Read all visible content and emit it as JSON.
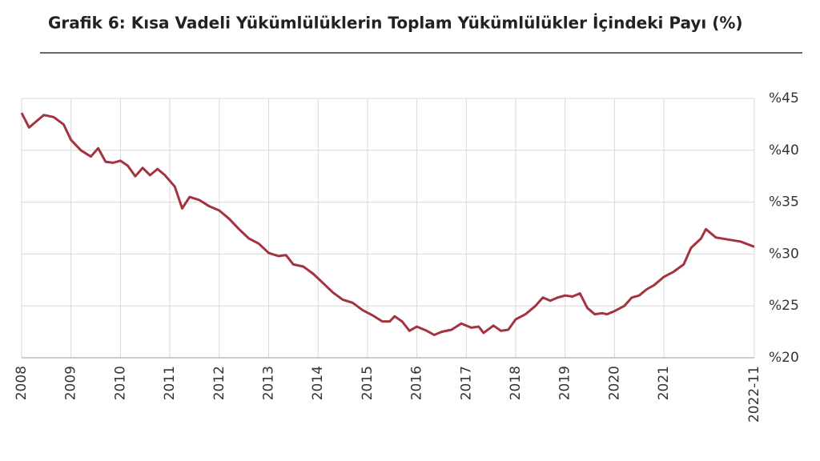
{
  "chart_data": {
    "type": "line",
    "title": "Grafik 6: Kısa Vadeli Yükümlülüklerin Toplam Yükümlülükler İçindeki Payı (%)",
    "x": [
      2008.0,
      2008.15,
      2008.3,
      2008.45,
      2008.65,
      2008.85,
      2009.0,
      2009.2,
      2009.4,
      2009.55,
      2009.7,
      2009.85,
      2010.0,
      2010.15,
      2010.3,
      2010.45,
      2010.6,
      2010.75,
      2010.9,
      2011.1,
      2011.25,
      2011.4,
      2011.6,
      2011.8,
      2012.0,
      2012.2,
      2012.4,
      2012.6,
      2012.8,
      2013.0,
      2013.2,
      2013.35,
      2013.5,
      2013.7,
      2013.9,
      2014.1,
      2014.3,
      2014.5,
      2014.7,
      2014.9,
      2015.1,
      2015.3,
      2015.45,
      2015.55,
      2015.7,
      2015.85,
      2016.0,
      2016.2,
      2016.35,
      2016.5,
      2016.7,
      2016.9,
      2017.1,
      2017.25,
      2017.35,
      2017.55,
      2017.7,
      2017.85,
      2018.0,
      2018.2,
      2018.4,
      2018.55,
      2018.7,
      2018.85,
      2019.0,
      2019.15,
      2019.3,
      2019.45,
      2019.6,
      2019.75,
      2019.85,
      2020.0,
      2020.2,
      2020.35,
      2020.5,
      2020.65,
      2020.8,
      2021.0,
      2021.2,
      2021.4,
      2021.55,
      2021.75,
      2021.85,
      2022.05,
      2022.3,
      2022.55,
      2022.83
    ],
    "series": [
      {
        "color": "#a3333f",
        "values": [
          43.6,
          42.2,
          42.8,
          43.4,
          43.2,
          42.5,
          41.0,
          40.0,
          39.4,
          40.2,
          38.9,
          38.8,
          39.0,
          38.5,
          37.5,
          38.3,
          37.6,
          38.2,
          37.6,
          36.5,
          34.4,
          35.5,
          35.2,
          34.6,
          34.2,
          33.4,
          32.4,
          31.5,
          31.0,
          30.1,
          29.8,
          29.9,
          29.0,
          28.8,
          28.1,
          27.2,
          26.3,
          25.6,
          25.3,
          24.6,
          24.1,
          23.5,
          23.5,
          24.0,
          23.5,
          22.6,
          23.0,
          22.6,
          22.2,
          22.5,
          22.7,
          23.3,
          22.9,
          23.0,
          22.4,
          23.1,
          22.6,
          22.7,
          23.7,
          24.2,
          25.0,
          25.8,
          25.5,
          25.8,
          26.0,
          25.9,
          26.2,
          24.8,
          24.2,
          24.3,
          24.2,
          24.5,
          25.0,
          25.8,
          26.0,
          26.6,
          27.0,
          27.8,
          28.3,
          29.0,
          30.6,
          31.5,
          32.4,
          31.6,
          31.4,
          31.2,
          30.7
        ]
      }
    ],
    "xlim": [
      2008,
      2022.83
    ],
    "xticks": [
      2008,
      2009,
      2010,
      2011,
      2012,
      2013,
      2014,
      2015,
      2016,
      2017,
      2018,
      2019,
      2020,
      2021,
      {
        "value": 2022.83,
        "label": "2022-11"
      }
    ],
    "ylim": [
      20,
      45
    ],
    "yticks": [
      {
        "value": 20,
        "label": "%20"
      },
      {
        "value": 25,
        "label": "%25"
      },
      {
        "value": 30,
        "label": "%30"
      },
      {
        "value": 35,
        "label": "%35"
      },
      {
        "value": 40,
        "label": "%40"
      },
      {
        "value": 45,
        "label": "%45"
      }
    ],
    "grid": true
  }
}
